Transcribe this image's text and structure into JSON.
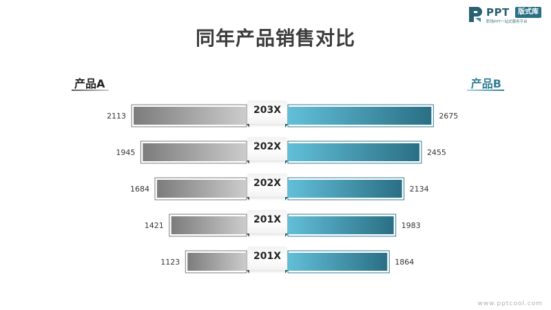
{
  "title": "同年产品销售对比",
  "logo": {
    "brand": "PPT",
    "badge": "版式库",
    "tagline": "职场PPT一站式服务平台"
  },
  "watermark": "www.pptcool.com",
  "colors": {
    "left_dark": "#7c7c7c",
    "left_light": "#cccccc",
    "right_light": "#62bfd8",
    "right_dark": "#2a6f84"
  },
  "chart_data": {
    "type": "bar",
    "subtype": "butterfly",
    "categories": [
      "203X",
      "202X",
      "202X",
      "201X",
      "201X"
    ],
    "series": [
      {
        "name": "产品A",
        "values": [
          2113,
          1945,
          1684,
          1421,
          1123
        ]
      },
      {
        "name": "产品B",
        "values": [
          2675,
          2455,
          2134,
          1983,
          1864
        ]
      }
    ]
  }
}
